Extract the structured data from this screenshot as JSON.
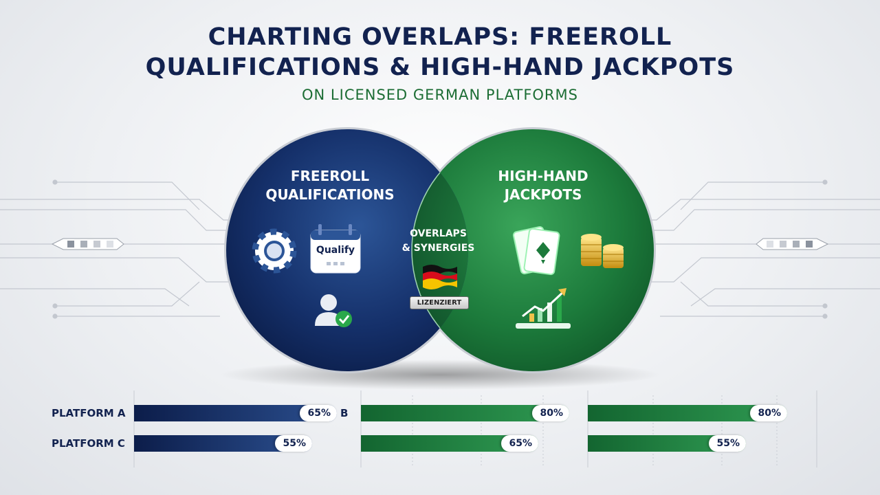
{
  "title": {
    "line1": "CHARTING OVERLAPS: FREEROLL",
    "line2": "QUALIFICATIONS & HIGH-HAND JACKPOTS",
    "subtitle": "ON LICENSED GERMAN PLATFORMS"
  },
  "venn": {
    "left_label": "FREEROLL\nQUALIFICATIONS",
    "right_label": "HIGH-HAND\nJACKPOTS",
    "overlap_label": "OVERLAPS\n& SYNERGIES",
    "qualify_text": "Qualify",
    "badge_text": "LIZENZIERT",
    "left_icons": [
      "poker-chip-icon",
      "calendar-icon",
      "user-check-icon"
    ],
    "right_icons": [
      "playing-cards-icon",
      "coin-stack-icon",
      "growth-chart-icon"
    ],
    "overlap_icons": [
      "german-flag-icon"
    ],
    "colors": {
      "left": "#0f2557",
      "right": "#1b7a3a",
      "overlap": "#1a6e3a"
    }
  },
  "platforms": {
    "labels": [
      "PLATFORM A",
      "B",
      "PLATFORM C"
    ],
    "rows": [
      {
        "values": [
          "65%",
          "80%",
          "80%"
        ]
      },
      {
        "values": [
          "55%",
          "65%",
          "55%"
        ]
      }
    ]
  },
  "chart_data": {
    "type": "bar",
    "row_labels": [
      "PLATFORM A",
      "PLATFORM C"
    ],
    "series": [
      {
        "values": [
          65,
          55
        ],
        "color": "#0f2557"
      },
      {
        "values": [
          80,
          65
        ],
        "color": "#1b7a3a"
      },
      {
        "values": [
          80,
          55
        ],
        "color": "#1b7a3a"
      }
    ],
    "unit": "%"
  }
}
